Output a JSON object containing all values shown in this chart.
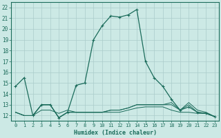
{
  "title": "",
  "xlabel": "Humidex (Indice chaleur)",
  "bg_color": "#cce9e5",
  "grid_color": "#aaccca",
  "line_color": "#1a6b5a",
  "xlim": [
    -0.5,
    23.5
  ],
  "ylim": [
    11.5,
    22.5
  ],
  "xticks": [
    0,
    1,
    2,
    3,
    4,
    5,
    6,
    7,
    8,
    9,
    10,
    11,
    12,
    13,
    14,
    15,
    16,
    17,
    18,
    19,
    20,
    21,
    22,
    23
  ],
  "yticks": [
    12,
    13,
    14,
    15,
    16,
    17,
    18,
    19,
    20,
    21,
    22
  ],
  "main_line": [
    14.7,
    15.5,
    12.0,
    13.0,
    13.0,
    11.8,
    12.3,
    14.8,
    15.0,
    19.0,
    20.3,
    21.2,
    21.1,
    21.3,
    21.8,
    17.0,
    15.5,
    14.7,
    13.5,
    12.5,
    12.8,
    12.3,
    12.2,
    11.9
  ],
  "line2": [
    12.3,
    12.0,
    12.0,
    13.0,
    13.0,
    11.8,
    12.3,
    12.3,
    12.3,
    12.3,
    12.3,
    12.5,
    12.5,
    12.7,
    13.0,
    13.0,
    13.0,
    13.0,
    13.0,
    12.5,
    13.0,
    12.3,
    12.2,
    11.9
  ],
  "line3": [
    12.3,
    12.0,
    12.0,
    13.0,
    13.0,
    11.8,
    12.3,
    12.3,
    12.3,
    12.3,
    12.3,
    12.5,
    12.5,
    12.7,
    13.0,
    13.0,
    13.0,
    13.0,
    13.2,
    12.5,
    13.2,
    12.5,
    12.3,
    11.9
  ],
  "line4": [
    12.3,
    12.0,
    12.0,
    12.5,
    12.5,
    12.2,
    12.5,
    12.3,
    12.3,
    12.3,
    12.3,
    12.3,
    12.3,
    12.5,
    12.7,
    12.8,
    12.8,
    12.8,
    12.5,
    12.3,
    12.3,
    12.2,
    12.2,
    11.9
  ]
}
